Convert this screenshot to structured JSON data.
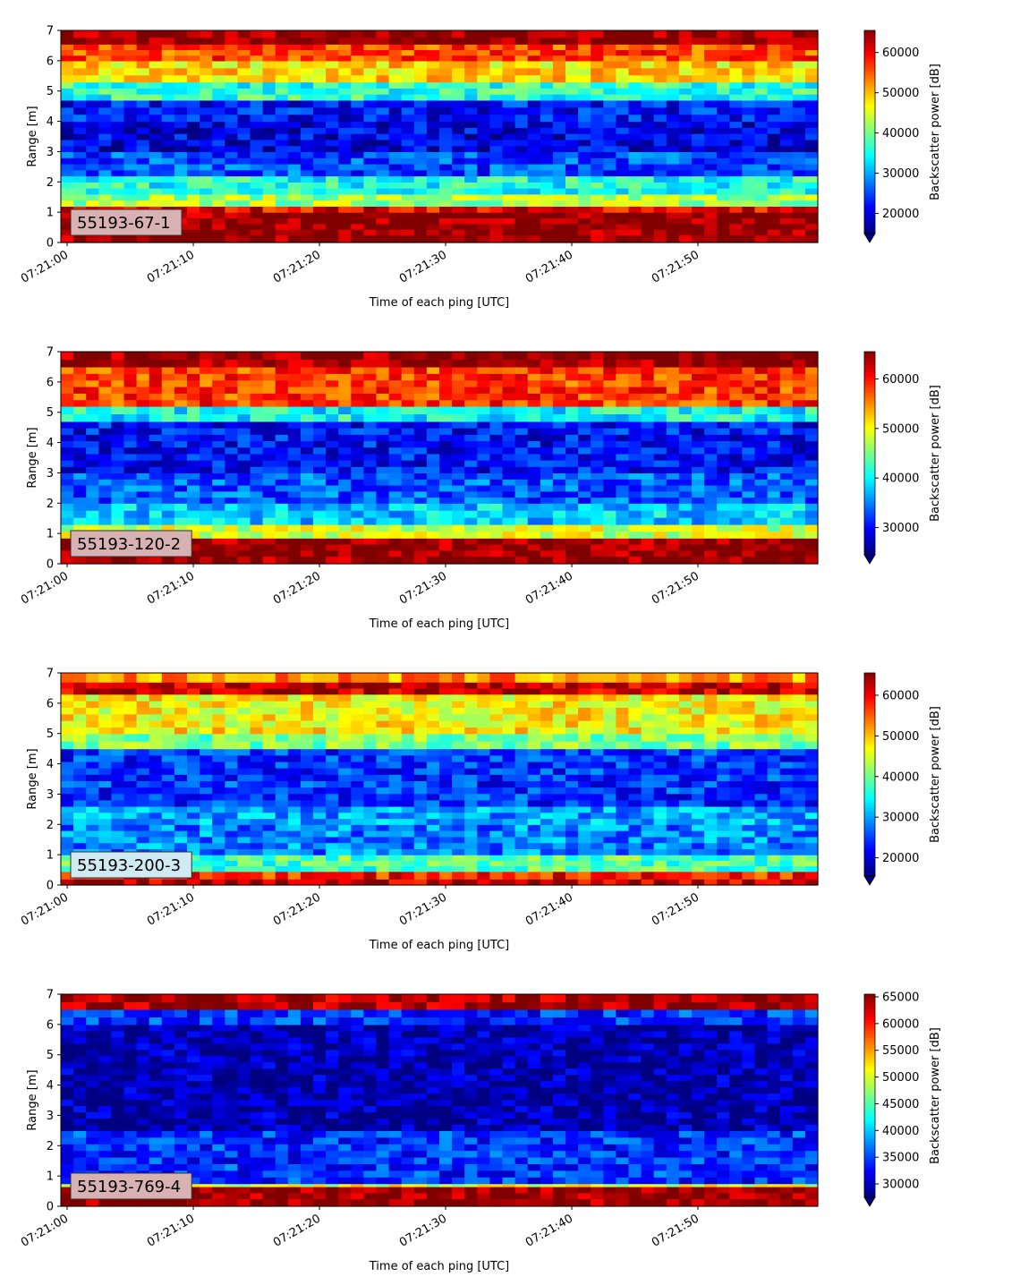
{
  "chart_data": [
    {
      "type": "heatmap",
      "panel_label": "55193-67-1",
      "xlabel": "Time of each ping [UTC]",
      "ylabel": "Range [m]",
      "colorbar_label": "Backscatter power [dB]",
      "colormap": "jet",
      "x_tick_labels": [
        "07:21:00",
        "07:21:10",
        "07:21:20",
        "07:21:30",
        "07:21:40",
        "07:21:50"
      ],
      "x_range_seconds": [
        0,
        59.5
      ],
      "y_ticks": [
        0,
        1,
        2,
        3,
        4,
        5,
        6,
        7
      ],
      "ylim": [
        0,
        7
      ],
      "colorbar_ticks": [
        20000,
        30000,
        40000,
        50000,
        60000
      ],
      "color_range": [
        15000,
        65500
      ],
      "label_box_color": "#d8b2b2",
      "bands": [
        {
          "range": [
            0.0,
            0.25
          ],
          "value": 65000
        },
        {
          "range": [
            0.25,
            1.0
          ],
          "value": 65000
        },
        {
          "range": [
            1.0,
            1.2
          ],
          "value": 60000
        },
        {
          "range": [
            1.2,
            1.6
          ],
          "value": 42000
        },
        {
          "range": [
            1.6,
            2.2
          ],
          "value": 35000
        },
        {
          "range": [
            2.2,
            3.0
          ],
          "value": 25000
        },
        {
          "range": [
            3.0,
            4.0
          ],
          "value": 20000
        },
        {
          "range": [
            4.0,
            4.7
          ],
          "value": 22000
        },
        {
          "range": [
            4.7,
            5.3
          ],
          "value": 36000
        },
        {
          "range": [
            5.3,
            6.0
          ],
          "value": 48000
        },
        {
          "range": [
            6.0,
            6.55
          ],
          "value": 56000
        },
        {
          "range": [
            6.55,
            7.0
          ],
          "value": 65000
        }
      ]
    },
    {
      "type": "heatmap",
      "panel_label": "55193-120-2",
      "xlabel": "Time of each ping [UTC]",
      "ylabel": "Range [m]",
      "colorbar_label": "Backscatter power [dB]",
      "colormap": "jet",
      "x_tick_labels": [
        "07:21:00",
        "07:21:10",
        "07:21:20",
        "07:21:30",
        "07:21:40",
        "07:21:50"
      ],
      "x_range_seconds": [
        0,
        59.5
      ],
      "y_ticks": [
        0,
        1,
        2,
        3,
        4,
        5,
        6,
        7
      ],
      "ylim": [
        0,
        7
      ],
      "colorbar_ticks": [
        30000,
        40000,
        50000,
        60000
      ],
      "color_range": [
        24500,
        65500
      ],
      "label_box_color": "#d8b2b2",
      "bands": [
        {
          "range": [
            0.0,
            0.25
          ],
          "value": 65000
        },
        {
          "range": [
            0.25,
            0.85
          ],
          "value": 65000
        },
        {
          "range": [
            0.85,
            1.3
          ],
          "value": 48000
        },
        {
          "range": [
            1.3,
            2.0
          ],
          "value": 38000
        },
        {
          "range": [
            2.0,
            3.0
          ],
          "value": 33000
        },
        {
          "range": [
            3.0,
            4.7
          ],
          "value": 30000
        },
        {
          "range": [
            4.7,
            5.2
          ],
          "value": 40000
        },
        {
          "range": [
            5.2,
            6.5
          ],
          "value": 58000
        },
        {
          "range": [
            6.5,
            7.0
          ],
          "value": 65000
        }
      ]
    },
    {
      "type": "heatmap",
      "panel_label": "55193-200-3",
      "xlabel": "Time of each ping [UTC]",
      "ylabel": "Range [m]",
      "colorbar_label": "Backscatter power [dB]",
      "colormap": "jet",
      "x_tick_labels": [
        "07:21:00",
        "07:21:10",
        "07:21:20",
        "07:21:30",
        "07:21:40",
        "07:21:50"
      ],
      "x_range_seconds": [
        0,
        59.5
      ],
      "y_ticks": [
        0,
        1,
        2,
        3,
        4,
        5,
        6,
        7
      ],
      "ylim": [
        0,
        7
      ],
      "colorbar_ticks": [
        20000,
        30000,
        40000,
        50000,
        60000
      ],
      "color_range": [
        15500,
        65500
      ],
      "label_box_color": "#cfeaf2",
      "bands": [
        {
          "range": [
            0.0,
            0.2
          ],
          "value": 62000
        },
        {
          "range": [
            0.2,
            0.45
          ],
          "value": 58000
        },
        {
          "range": [
            0.45,
            1.0
          ],
          "value": 38000
        },
        {
          "range": [
            1.0,
            2.0
          ],
          "value": 28000
        },
        {
          "range": [
            2.0,
            2.6
          ],
          "value": 30000
        },
        {
          "range": [
            2.6,
            4.5
          ],
          "value": 24000
        },
        {
          "range": [
            4.5,
            5.0
          ],
          "value": 40000
        },
        {
          "range": [
            5.0,
            6.3
          ],
          "value": 47000
        },
        {
          "range": [
            6.3,
            6.7
          ],
          "value": 62000
        },
        {
          "range": [
            6.7,
            7.0
          ],
          "value": 52000
        }
      ]
    },
    {
      "type": "heatmap",
      "panel_label": "55193-769-4",
      "xlabel": "Time of each ping [UTC]",
      "ylabel": "Range [m]",
      "colorbar_label": "Backscatter power [dB]",
      "colormap": "jet",
      "x_tick_labels": [
        "07:21:00",
        "07:21:10",
        "07:21:20",
        "07:21:30",
        "07:21:40",
        "07:21:50"
      ],
      "x_range_seconds": [
        0,
        59.5
      ],
      "y_ticks": [
        0,
        1,
        2,
        3,
        4,
        5,
        6,
        7
      ],
      "ylim": [
        0,
        7
      ],
      "colorbar_ticks": [
        30000,
        35000,
        40000,
        45000,
        50000,
        55000,
        60000,
        65000
      ],
      "color_range": [
        27500,
        65500
      ],
      "label_box_color": "#d8b2b2",
      "bands": [
        {
          "range": [
            0.0,
            0.25
          ],
          "value": 65000
        },
        {
          "range": [
            0.25,
            0.65
          ],
          "value": 65000
        },
        {
          "range": [
            0.65,
            0.75
          ],
          "value": 50000
        },
        {
          "range": [
            0.75,
            2.5
          ],
          "value": 34000
        },
        {
          "range": [
            2.5,
            6.0
          ],
          "value": 29000
        },
        {
          "range": [
            6.0,
            6.5
          ],
          "value": 34000
        },
        {
          "range": [
            6.5,
            7.0
          ],
          "value": 64000
        }
      ]
    }
  ]
}
